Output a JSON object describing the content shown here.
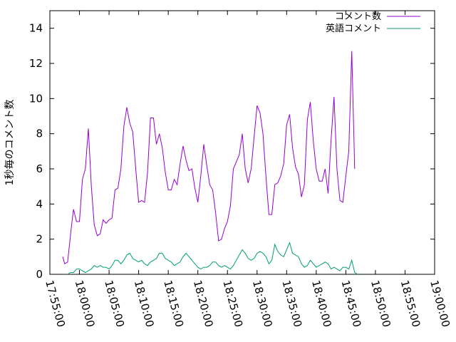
{
  "chart_data": {
    "type": "line",
    "title": "",
    "xlabel": "",
    "ylabel": "1秒毎のコメント数",
    "xlim_minutes": [
      -5,
      60
    ],
    "ylim": [
      0,
      15
    ],
    "grid": false,
    "legend_position": "top-right",
    "x_ticks": [
      "17:55:00",
      "18:00:00",
      "18:05:00",
      "18:10:00",
      "18:15:00",
      "18:20:00",
      "18:25:00",
      "18:30:00",
      "18:35:00",
      "18:40:00",
      "18:45:00",
      "18:50:00",
      "18:55:00",
      "19:00:00"
    ],
    "y_ticks": [
      "0",
      "2",
      "4",
      "6",
      "8",
      "10",
      "12",
      "14"
    ],
    "series": [
      {
        "name": "コメント数",
        "color": "#9400d3",
        "points": [
          [
            "17:57:10",
            1.0
          ],
          [
            "17:57:30",
            0.6
          ],
          [
            "17:58:00",
            0.7
          ],
          [
            "17:58:40",
            2.8
          ],
          [
            "17:59:00",
            3.7
          ],
          [
            "17:59:30",
            3.0
          ],
          [
            "18:00:00",
            3.0
          ],
          [
            "18:00:30",
            5.4
          ],
          [
            "18:01:00",
            6.0
          ],
          [
            "18:01:30",
            8.3
          ],
          [
            "18:02:00",
            5.0
          ],
          [
            "18:02:30",
            2.8
          ],
          [
            "18:03:00",
            2.2
          ],
          [
            "18:03:30",
            2.3
          ],
          [
            "18:04:00",
            3.1
          ],
          [
            "18:04:30",
            2.9
          ],
          [
            "18:05:00",
            3.1
          ],
          [
            "18:05:30",
            3.2
          ],
          [
            "18:06:00",
            4.8
          ],
          [
            "18:06:30",
            4.9
          ],
          [
            "18:07:00",
            6.0
          ],
          [
            "18:07:30",
            8.4
          ],
          [
            "18:08:00",
            9.5
          ],
          [
            "18:08:30",
            8.6
          ],
          [
            "18:09:00",
            8.1
          ],
          [
            "18:09:30",
            6.0
          ],
          [
            "18:10:00",
            4.1
          ],
          [
            "18:10:30",
            4.2
          ],
          [
            "18:11:00",
            4.1
          ],
          [
            "18:11:30",
            5.8
          ],
          [
            "18:12:00",
            8.9
          ],
          [
            "18:12:30",
            8.9
          ],
          [
            "18:13:00",
            7.4
          ],
          [
            "18:13:30",
            8.0
          ],
          [
            "18:14:00",
            7.2
          ],
          [
            "18:14:30",
            5.8
          ],
          [
            "18:15:00",
            4.8
          ],
          [
            "18:15:30",
            4.8
          ],
          [
            "18:16:00",
            5.4
          ],
          [
            "18:16:30",
            5.1
          ],
          [
            "18:17:00",
            6.3
          ],
          [
            "18:17:30",
            7.3
          ],
          [
            "18:18:00",
            6.5
          ],
          [
            "18:18:30",
            5.9
          ],
          [
            "18:19:00",
            6.0
          ],
          [
            "18:19:30",
            4.9
          ],
          [
            "18:20:00",
            4.1
          ],
          [
            "18:20:30",
            5.6
          ],
          [
            "18:21:00",
            7.4
          ],
          [
            "18:21:30",
            6.2
          ],
          [
            "18:22:00",
            5.1
          ],
          [
            "18:22:30",
            4.8
          ],
          [
            "18:23:00",
            3.5
          ],
          [
            "18:23:30",
            1.9
          ],
          [
            "18:24:00",
            2.0
          ],
          [
            "18:24:30",
            2.6
          ],
          [
            "18:25:00",
            3.0
          ],
          [
            "18:25:30",
            3.9
          ],
          [
            "18:26:00",
            6.0
          ],
          [
            "18:26:30",
            6.4
          ],
          [
            "18:27:00",
            6.8
          ],
          [
            "18:27:30",
            8.0
          ],
          [
            "18:28:00",
            6.0
          ],
          [
            "18:28:30",
            5.2
          ],
          [
            "18:29:00",
            6.0
          ],
          [
            "18:29:30",
            7.8
          ],
          [
            "18:30:00",
            9.6
          ],
          [
            "18:30:30",
            9.2
          ],
          [
            "18:31:00",
            8.0
          ],
          [
            "18:31:30",
            5.6
          ],
          [
            "18:32:00",
            3.4
          ],
          [
            "18:32:30",
            3.4
          ],
          [
            "18:33:00",
            5.1
          ],
          [
            "18:33:30",
            5.2
          ],
          [
            "18:34:00",
            5.6
          ],
          [
            "18:34:30",
            6.3
          ],
          [
            "18:35:00",
            8.5
          ],
          [
            "18:35:30",
            9.1
          ],
          [
            "18:36:00",
            7.2
          ],
          [
            "18:36:30",
            6.1
          ],
          [
            "18:37:00",
            5.7
          ],
          [
            "18:37:30",
            4.4
          ],
          [
            "18:38:00",
            5.1
          ],
          [
            "18:38:30",
            8.8
          ],
          [
            "18:39:00",
            9.8
          ],
          [
            "18:39:30",
            7.6
          ],
          [
            "18:40:00",
            6.0
          ],
          [
            "18:40:30",
            5.3
          ],
          [
            "18:41:00",
            5.3
          ],
          [
            "18:41:30",
            6.0
          ],
          [
            "18:42:00",
            4.6
          ],
          [
            "18:42:30",
            7.6
          ],
          [
            "18:43:00",
            10.1
          ],
          [
            "18:43:30",
            6.0
          ],
          [
            "18:44:00",
            4.2
          ],
          [
            "18:44:30",
            4.1
          ],
          [
            "18:45:00",
            5.6
          ],
          [
            "18:45:30",
            7.0
          ],
          [
            "18:46:00",
            12.7
          ],
          [
            "18:46:30",
            6.0
          ]
        ]
      },
      {
        "name": "英語コメント",
        "color": "#009e73",
        "points": [
          [
            "17:58:00",
            0.0
          ],
          [
            "17:58:30",
            0.1
          ],
          [
            "17:59:00",
            0.1
          ],
          [
            "17:59:30",
            0.3
          ],
          [
            "18:00:00",
            0.3
          ],
          [
            "18:00:30",
            0.2
          ],
          [
            "18:01:00",
            0.1
          ],
          [
            "18:01:30",
            0.2
          ],
          [
            "18:02:00",
            0.3
          ],
          [
            "18:02:30",
            0.5
          ],
          [
            "18:03:00",
            0.4
          ],
          [
            "18:03:30",
            0.5
          ],
          [
            "18:04:00",
            0.4
          ],
          [
            "18:04:30",
            0.4
          ],
          [
            "18:05:00",
            0.3
          ],
          [
            "18:05:30",
            0.5
          ],
          [
            "18:06:00",
            0.8
          ],
          [
            "18:06:30",
            0.8
          ],
          [
            "18:07:00",
            0.6
          ],
          [
            "18:07:30",
            0.8
          ],
          [
            "18:08:00",
            1.1
          ],
          [
            "18:08:30",
            1.2
          ],
          [
            "18:09:00",
            0.9
          ],
          [
            "18:09:30",
            0.8
          ],
          [
            "18:10:00",
            0.7
          ],
          [
            "18:10:30",
            0.8
          ],
          [
            "18:11:00",
            0.6
          ],
          [
            "18:11:30",
            0.5
          ],
          [
            "18:12:00",
            0.7
          ],
          [
            "18:12:30",
            0.8
          ],
          [
            "18:13:00",
            0.9
          ],
          [
            "18:13:30",
            1.2
          ],
          [
            "18:14:00",
            1.2
          ],
          [
            "18:14:30",
            0.9
          ],
          [
            "18:15:00",
            0.8
          ],
          [
            "18:15:30",
            0.7
          ],
          [
            "18:16:00",
            0.5
          ],
          [
            "18:16:30",
            0.6
          ],
          [
            "18:17:00",
            0.7
          ],
          [
            "18:17:30",
            1.0
          ],
          [
            "18:18:00",
            1.2
          ],
          [
            "18:18:30",
            1.0
          ],
          [
            "18:19:00",
            0.8
          ],
          [
            "18:19:30",
            0.6
          ],
          [
            "18:20:00",
            0.4
          ],
          [
            "18:20:30",
            0.3
          ],
          [
            "18:21:00",
            0.4
          ],
          [
            "18:21:30",
            0.4
          ],
          [
            "18:22:00",
            0.5
          ],
          [
            "18:22:30",
            0.7
          ],
          [
            "18:23:00",
            0.7
          ],
          [
            "18:23:30",
            0.5
          ],
          [
            "18:24:00",
            0.4
          ],
          [
            "18:24:30",
            0.5
          ],
          [
            "18:25:00",
            0.4
          ],
          [
            "18:25:30",
            0.3
          ],
          [
            "18:26:00",
            0.5
          ],
          [
            "18:26:30",
            0.8
          ],
          [
            "18:27:00",
            1.1
          ],
          [
            "18:27:30",
            1.4
          ],
          [
            "18:28:00",
            1.2
          ],
          [
            "18:28:30",
            0.9
          ],
          [
            "18:29:00",
            0.8
          ],
          [
            "18:29:30",
            0.9
          ],
          [
            "18:30:00",
            1.2
          ],
          [
            "18:30:30",
            1.3
          ],
          [
            "18:31:00",
            1.2
          ],
          [
            "18:31:30",
            1.0
          ],
          [
            "18:32:00",
            0.6
          ],
          [
            "18:32:30",
            0.8
          ],
          [
            "18:33:00",
            1.7
          ],
          [
            "18:33:30",
            1.3
          ],
          [
            "18:34:00",
            1.1
          ],
          [
            "18:34:30",
            1.0
          ],
          [
            "18:35:00",
            1.4
          ],
          [
            "18:35:30",
            1.8
          ],
          [
            "18:36:00",
            1.2
          ],
          [
            "18:36:30",
            1.1
          ],
          [
            "18:37:00",
            1.0
          ],
          [
            "18:37:30",
            0.6
          ],
          [
            "18:38:00",
            0.4
          ],
          [
            "18:38:30",
            0.5
          ],
          [
            "18:39:00",
            0.8
          ],
          [
            "18:39:30",
            0.6
          ],
          [
            "18:40:00",
            0.4
          ],
          [
            "18:40:30",
            0.5
          ],
          [
            "18:41:00",
            0.6
          ],
          [
            "18:41:30",
            0.7
          ],
          [
            "18:42:00",
            0.6
          ],
          [
            "18:42:30",
            0.3
          ],
          [
            "18:43:00",
            0.4
          ],
          [
            "18:43:30",
            0.3
          ],
          [
            "18:44:00",
            0.2
          ],
          [
            "18:44:30",
            0.4
          ],
          [
            "18:45:00",
            0.4
          ],
          [
            "18:45:30",
            0.3
          ],
          [
            "18:46:00",
            0.8
          ],
          [
            "18:46:30",
            0.1
          ],
          [
            "18:47:00",
            0.0
          ]
        ]
      }
    ]
  }
}
